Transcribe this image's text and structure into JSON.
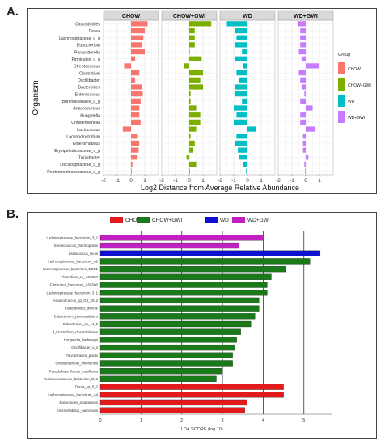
{
  "panels": {
    "a_label": "A.",
    "b_label": "B."
  },
  "chart_data": [
    {
      "type": "bar",
      "orientation": "horizontal",
      "facets": [
        "CHOW",
        "CHOW+GWI",
        "WD",
        "WD+GWI"
      ],
      "categories": [
        "Clostridioides",
        "Dorea",
        "Lachnospiraceae_u_g",
        "Eubacterium",
        "Parasutterella",
        "Firmicutes_u_g",
        "Streptococcus",
        "Clostridium",
        "Oscillibacter",
        "Bacteroides",
        "Enterococcus",
        "Burkholderiales_u_g",
        "Anaerotruncus",
        "Hungatella",
        "Christensenella",
        "Lactococcus",
        "Lachnoclostridium",
        "Enterorhabdus",
        "Erysipelotrichaceae_u_g",
        "Turicibacter",
        "Oscillospiraceae_u_g",
        "Peptostreptococcaceae_u_g"
      ],
      "series": [
        {
          "name": "CHOW",
          "color": "#f8766d",
          "values": [
            1.2,
            1.0,
            0.9,
            0.8,
            1.0,
            0.3,
            -0.5,
            0.6,
            0.3,
            0.8,
            0.85,
            0.7,
            0.6,
            0.6,
            0.7,
            -0.6,
            0.5,
            0.6,
            0.55,
            0.45,
            0.1,
            0.05
          ]
        },
        {
          "name": "CHOW+GWI",
          "color": "#7cae00",
          "values": [
            1.6,
            0.4,
            0.4,
            0.4,
            0.0,
            0.9,
            -0.4,
            1.0,
            0.8,
            1.0,
            0.1,
            0.1,
            0.5,
            0.8,
            0.8,
            0.5,
            0.1,
            0.4,
            0.3,
            -0.2,
            0.5,
            0.05
          ]
        },
        {
          "name": "WD",
          "color": "#00bfc4",
          "values": [
            -1.5,
            -0.9,
            -0.8,
            -0.9,
            -0.4,
            -0.9,
            -0.3,
            -0.8,
            -0.6,
            -0.9,
            -0.9,
            -0.4,
            -1.0,
            -0.8,
            -1.0,
            0.6,
            -0.8,
            -0.9,
            -0.7,
            -0.6,
            -0.3,
            -0.1
          ]
        },
        {
          "name": "WD+GWI",
          "color": "#c77cff",
          "values": [
            -0.6,
            -0.4,
            -0.4,
            -0.4,
            -0.5,
            -0.3,
            1.0,
            -0.5,
            -0.4,
            -0.3,
            -0.1,
            -0.4,
            0.5,
            -0.4,
            -0.4,
            0.7,
            -0.2,
            -0.2,
            -0.2,
            0.2,
            -0.1,
            -0.05
          ]
        }
      ],
      "xlim": [
        -2,
        2
      ],
      "xticks": [
        "-2",
        "-1",
        "0",
        "1"
      ],
      "xlabel": "Log2 Distance from Average Relative Abundance",
      "ylabel": "Organism",
      "legend_title": "Group",
      "legend": [
        "CHOW",
        "CHOW+GWI",
        "WD",
        "WD+GWI"
      ],
      "grid": true
    },
    {
      "type": "bar",
      "orientation": "horizontal",
      "categories": [
        "Lachnospiraceae_bacterium_3_2",
        "Streptococcus_thermophilus",
        "Lactococcus_lactis",
        "Lachnospiraceae_bacterium_A2",
        "Lachnospiraceae_bacterium_COE1",
        "Clostridium_sp_ASF502",
        "Firmicutes_bacterium_ASF500",
        "Lachnospiraceae_bacterium_3_1",
        "Anaerotruncus_sp_G3_2012",
        "Clostridioides_difficile",
        "Eubacterium_plexicaudatum",
        "Eubacterium_sp_14_2",
        "f_Clostridium_clostridioforme",
        "Hungatella_hathewayi",
        "Oscillibacter_u_s",
        "Flavonifractor_plautii",
        "Christensenella_timonensis",
        "Pseudoflavonifractor_capillosus",
        "Ruminococcaceae_bacterium_D16",
        "Dorea_sp_5_2",
        "Lachnospiraceae_bacterium_A4",
        "Bacteroides_acidifaciens",
        "Enterorhabdus_caecimuris"
      ],
      "values": [
        4.0,
        3.4,
        5.4,
        5.15,
        4.55,
        4.2,
        4.1,
        4.1,
        3.9,
        3.9,
        3.8,
        3.7,
        3.45,
        3.35,
        3.3,
        3.25,
        3.25,
        3.0,
        2.85,
        4.5,
        4.5,
        3.6,
        3.55
      ],
      "groups": [
        "WD+GWI",
        "WD+GWI",
        "WD",
        "CHOW+GWI",
        "CHOW+GWI",
        "CHOW+GWI",
        "CHOW+GWI",
        "CHOW+GWI",
        "CHOW+GWI",
        "CHOW+GWI",
        "CHOW+GWI",
        "CHOW+GWI",
        "CHOW+GWI",
        "CHOW+GWI",
        "CHOW+GWI",
        "CHOW+GWI",
        "CHOW+GWI",
        "CHOW+GWI",
        "CHOW+GWI",
        "CHOW",
        "CHOW",
        "CHOW",
        "CHOW"
      ],
      "legend": [
        {
          "name": "CHOW",
          "color": "#e31a1c"
        },
        {
          "name": "CHOW+GWI",
          "color": "#1a7a1a"
        },
        {
          "name": "WD",
          "color": "#1010d0"
        },
        {
          "name": "WD+GWI",
          "color": "#c020c0"
        }
      ],
      "xlim": [
        0,
        5.7
      ],
      "xticks": [
        "0",
        "1",
        "2",
        "3",
        "4",
        "5"
      ],
      "xlabel": "LDA SCORE (log 10)",
      "grid": true
    }
  ]
}
